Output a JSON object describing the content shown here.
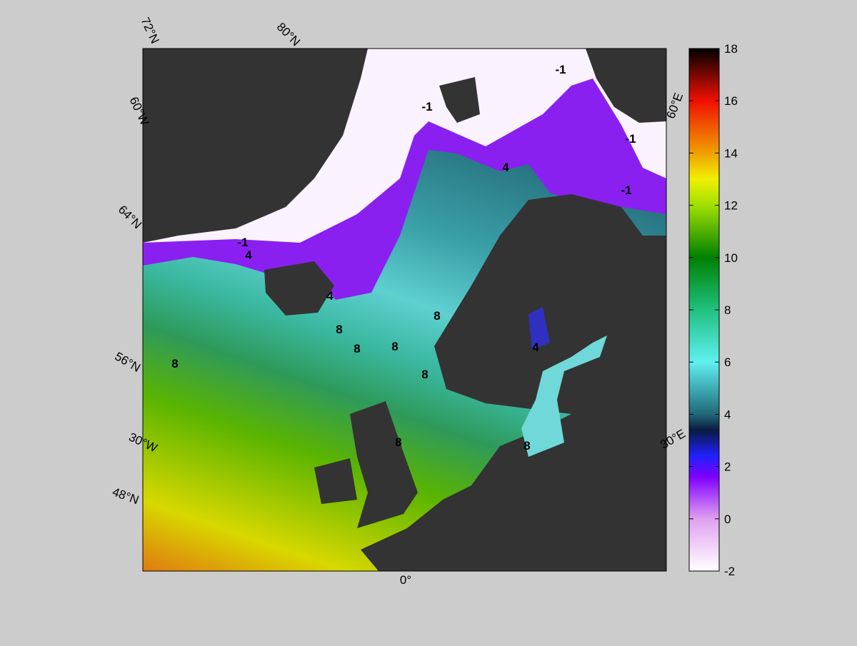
{
  "map": {
    "graticule_labels": [
      "72°N",
      "80°N",
      "60°W",
      "64°N",
      "56°N",
      "30°W",
      "48°N",
      "0°",
      "30°E",
      "60°E"
    ],
    "contour_labels": [
      "-1",
      "-1",
      "-1",
      "-1",
      "-1",
      "4",
      "4",
      "4",
      "4",
      "8",
      "8",
      "8",
      "8",
      "8",
      "8",
      "8",
      "8"
    ]
  },
  "colorbar": {
    "range": [
      -2,
      18
    ],
    "ticks": [
      -2,
      0,
      2,
      4,
      6,
      8,
      10,
      12,
      14,
      16,
      18
    ]
  }
}
